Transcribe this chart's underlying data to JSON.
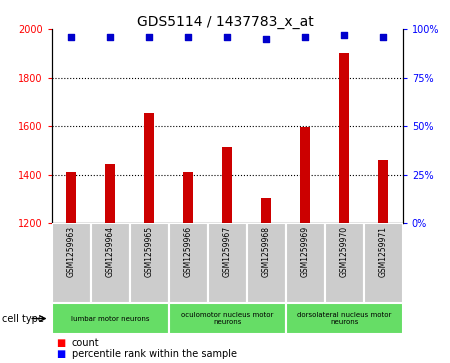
{
  "title": "GDS5114 / 1437783_x_at",
  "samples": [
    "GSM1259963",
    "GSM1259964",
    "GSM1259965",
    "GSM1259966",
    "GSM1259967",
    "GSM1259968",
    "GSM1259969",
    "GSM1259970",
    "GSM1259971"
  ],
  "counts": [
    1410,
    1445,
    1655,
    1410,
    1515,
    1305,
    1595,
    1900,
    1460
  ],
  "percentiles": [
    96,
    96,
    96,
    96,
    96,
    95,
    96,
    97,
    96
  ],
  "ylim_left": [
    1200,
    2000
  ],
  "ylim_right": [
    0,
    100
  ],
  "yticks_left": [
    1200,
    1400,
    1600,
    1800,
    2000
  ],
  "yticks_right": [
    0,
    25,
    50,
    75,
    100
  ],
  "bar_color": "#cc0000",
  "scatter_color": "#0000cc",
  "cell_type_groups": [
    {
      "label": "lumbar motor neurons",
      "start": 0,
      "end": 3,
      "color": "#66dd66"
    },
    {
      "label": "oculomotor nucleus motor\nneurons",
      "start": 3,
      "end": 6,
      "color": "#66dd66"
    },
    {
      "label": "dorsolateral nucleus motor\nneurons",
      "start": 6,
      "end": 9,
      "color": "#66dd66"
    }
  ],
  "cell_type_label": "cell type",
  "legend_count_label": "count",
  "legend_percentile_label": "percentile rank within the sample",
  "bar_width": 0.25,
  "sample_row_bg": "#cccccc",
  "figsize": [
    4.5,
    3.63
  ],
  "dpi": 100
}
